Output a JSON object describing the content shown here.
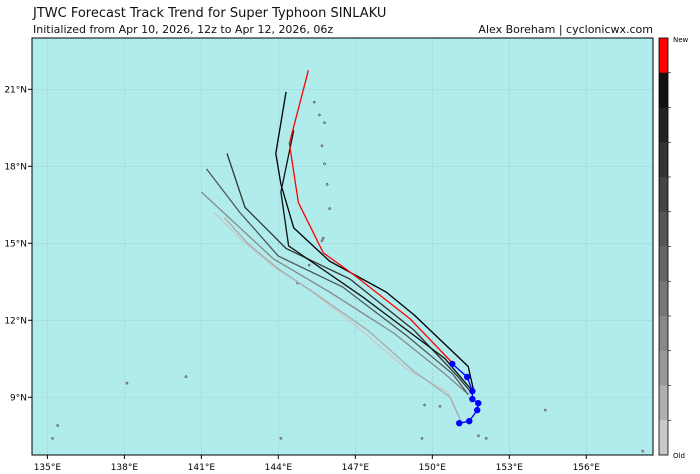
{
  "header": {
    "title": "JTWC Forecast Track Trend for Super Typhoon SINLAKU",
    "subtitle": "Initialized from Apr 10, 2026, 12z to Apr 12, 2026, 06z",
    "credit": "Alex Boreham | cyclonicwx.com"
  },
  "map": {
    "lon_range": [
      134.4,
      158.6
    ],
    "lat_range": [
      6.75,
      23.0
    ],
    "ocean_color": "#b0ecec",
    "grid_color": "#8fc9c9",
    "lon_ticks": [
      {
        "v": 135,
        "label": "135°E"
      },
      {
        "v": 138,
        "label": "138°E"
      },
      {
        "v": 141,
        "label": "141°E"
      },
      {
        "v": 144,
        "label": "144°E"
      },
      {
        "v": 147,
        "label": "147°E"
      },
      {
        "v": 150,
        "label": "150°E"
      },
      {
        "v": 153,
        "label": "153°E"
      },
      {
        "v": 156,
        "label": "156°E"
      }
    ],
    "lat_ticks": [
      {
        "v": 9,
        "label": "9°N"
      },
      {
        "v": 12,
        "label": "12°N"
      },
      {
        "v": 15,
        "label": "15°N"
      },
      {
        "v": 18,
        "label": "18°N"
      },
      {
        "v": 21,
        "label": "21°N"
      }
    ]
  },
  "tracks": [
    {
      "color": "#c8c8c8",
      "points": [
        [
          141.5,
          16.2
        ],
        [
          142.6,
          15.1
        ],
        [
          143.8,
          14.1
        ],
        [
          145.2,
          13.2
        ],
        [
          147.0,
          11.8
        ],
        [
          149.0,
          10.1
        ],
        [
          150.6,
          9.2
        ],
        [
          151.0,
          8.3
        ]
      ]
    },
    {
      "color": "#aaaaaa",
      "points": [
        [
          141.9,
          16.0
        ],
        [
          142.8,
          15.0
        ],
        [
          144.0,
          14.0
        ],
        [
          145.5,
          13.0
        ],
        [
          147.5,
          11.6
        ],
        [
          149.3,
          10.0
        ],
        [
          150.7,
          9.0
        ],
        [
          151.1,
          8.1
        ]
      ]
    },
    {
      "color": "#888888",
      "points": [
        [
          141.0,
          17.0
        ],
        [
          142.4,
          15.7
        ],
        [
          143.8,
          14.4
        ],
        [
          146.0,
          13.1
        ],
        [
          148.5,
          11.5
        ],
        [
          150.5,
          9.9
        ],
        [
          151.3,
          9.2
        ]
      ]
    },
    {
      "color": "#555555",
      "points": [
        [
          141.2,
          17.9
        ],
        [
          142.5,
          16.2
        ],
        [
          144.0,
          14.5
        ],
        [
          146.5,
          13.3
        ],
        [
          149.0,
          11.4
        ],
        [
          150.8,
          9.9
        ],
        [
          151.4,
          9.1
        ]
      ]
    },
    {
      "color": "#333333",
      "points": [
        [
          142.0,
          18.5
        ],
        [
          142.7,
          16.4
        ],
        [
          144.3,
          14.8
        ],
        [
          146.8,
          13.6
        ],
        [
          149.3,
          11.6
        ],
        [
          151.0,
          9.8
        ],
        [
          151.5,
          9.2
        ]
      ]
    },
    {
      "color": "#111111",
      "points": [
        [
          144.6,
          19.4
        ],
        [
          144.1,
          17.0
        ],
        [
          144.4,
          14.9
        ],
        [
          147.3,
          12.9
        ],
        [
          150.5,
          10.5
        ],
        [
          151.6,
          9.2
        ]
      ]
    },
    {
      "color": "#000000",
      "points": [
        [
          144.3,
          20.9
        ],
        [
          143.9,
          18.5
        ],
        [
          144.1,
          17.3
        ],
        [
          144.6,
          15.6
        ],
        [
          146.0,
          14.3
        ],
        [
          148.2,
          13.1
        ],
        [
          149.3,
          12.2
        ],
        [
          151.4,
          10.2
        ],
        [
          151.6,
          9.3
        ]
      ]
    },
    {
      "color": "#ff0000",
      "points": [
        [
          145.17,
          21.74
        ],
        [
          144.43,
          18.89
        ],
        [
          144.78,
          16.59
        ],
        [
          145.75,
          14.63
        ],
        [
          147.0,
          13.73
        ],
        [
          149.14,
          12.05
        ],
        [
          150.78,
          10.34
        ]
      ]
    }
  ],
  "observed_track": {
    "color": "#0000ff",
    "points": [
      [
        150.78,
        10.3
      ],
      [
        151.36,
        9.79
      ],
      [
        151.56,
        9.24
      ],
      [
        151.56,
        8.93
      ],
      [
        151.79,
        8.77
      ],
      [
        151.75,
        8.5
      ],
      [
        151.44,
        8.07
      ],
      [
        151.05,
        7.99
      ]
    ]
  },
  "islands": [
    [
      135.2,
      7.4
    ],
    [
      135.4,
      7.9
    ],
    [
      138.1,
      9.55
    ],
    [
      140.4,
      9.8
    ],
    [
      144.75,
      13.45
    ],
    [
      145.7,
      15.1
    ],
    [
      145.75,
      15.2
    ],
    [
      145.2,
      14.15
    ],
    [
      145.8,
      18.1
    ],
    [
      145.7,
      18.8
    ],
    [
      146.0,
      16.35
    ],
    [
      145.9,
      17.3
    ],
    [
      145.6,
      20.0
    ],
    [
      145.4,
      20.5
    ],
    [
      145.8,
      19.7
    ],
    [
      149.7,
      8.7
    ],
    [
      150.3,
      8.65
    ],
    [
      151.8,
      7.5
    ],
    [
      152.1,
      7.4
    ],
    [
      149.6,
      7.4
    ],
    [
      154.4,
      8.5
    ],
    [
      144.1,
      7.4
    ],
    [
      158.2,
      6.9
    ]
  ],
  "colorbar": {
    "label_new": "New",
    "label_old": "Old",
    "colors": [
      "#ff0000",
      "#111111",
      "#222222",
      "#333333",
      "#444444",
      "#555555",
      "#666666",
      "#777777",
      "#888888",
      "#9a9a9a",
      "#b0b0b0",
      "#c8c8c8"
    ]
  }
}
